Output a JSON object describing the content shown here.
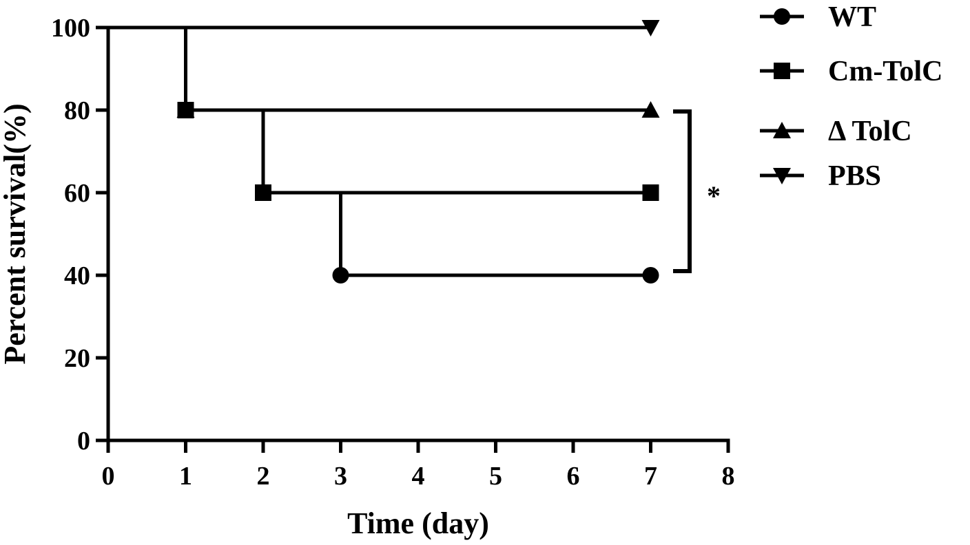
{
  "chart_data": {
    "type": "line",
    "subtype": "kaplan-meier step",
    "title": "",
    "xlabel": "Time (day)",
    "ylabel": "Percent survival(%)",
    "xlim": [
      0,
      8
    ],
    "ylim": [
      0,
      100
    ],
    "xticks": [
      "0",
      "1",
      "2",
      "3",
      "4",
      "5",
      "6",
      "7",
      "8"
    ],
    "yticks": [
      "0",
      "20",
      "40",
      "60",
      "80",
      "100"
    ],
    "grid": false,
    "legend_position": "top-right, outside plot",
    "series": [
      {
        "name": "WT",
        "marker": "circle",
        "color": "#000000",
        "x": [
          0,
          1,
          2,
          3,
          7
        ],
        "y": [
          100,
          80,
          60,
          40,
          40
        ]
      },
      {
        "name": "Cm-TolC",
        "marker": "square",
        "color": "#000000",
        "x": [
          0,
          1,
          2,
          7
        ],
        "y": [
          100,
          80,
          60,
          60
        ]
      },
      {
        "name": "Δ TolC",
        "marker": "triangle-up",
        "color": "#000000",
        "x": [
          0,
          1,
          7
        ],
        "y": [
          100,
          80,
          80
        ]
      },
      {
        "name": "PBS",
        "marker": "triangle-down",
        "color": "#000000",
        "x": [
          0,
          7
        ],
        "y": [
          100,
          100
        ]
      }
    ],
    "annotations": [
      {
        "text": "*",
        "type": "significance bracket",
        "x": 7.5,
        "y_range": [
          40,
          80
        ]
      }
    ]
  }
}
